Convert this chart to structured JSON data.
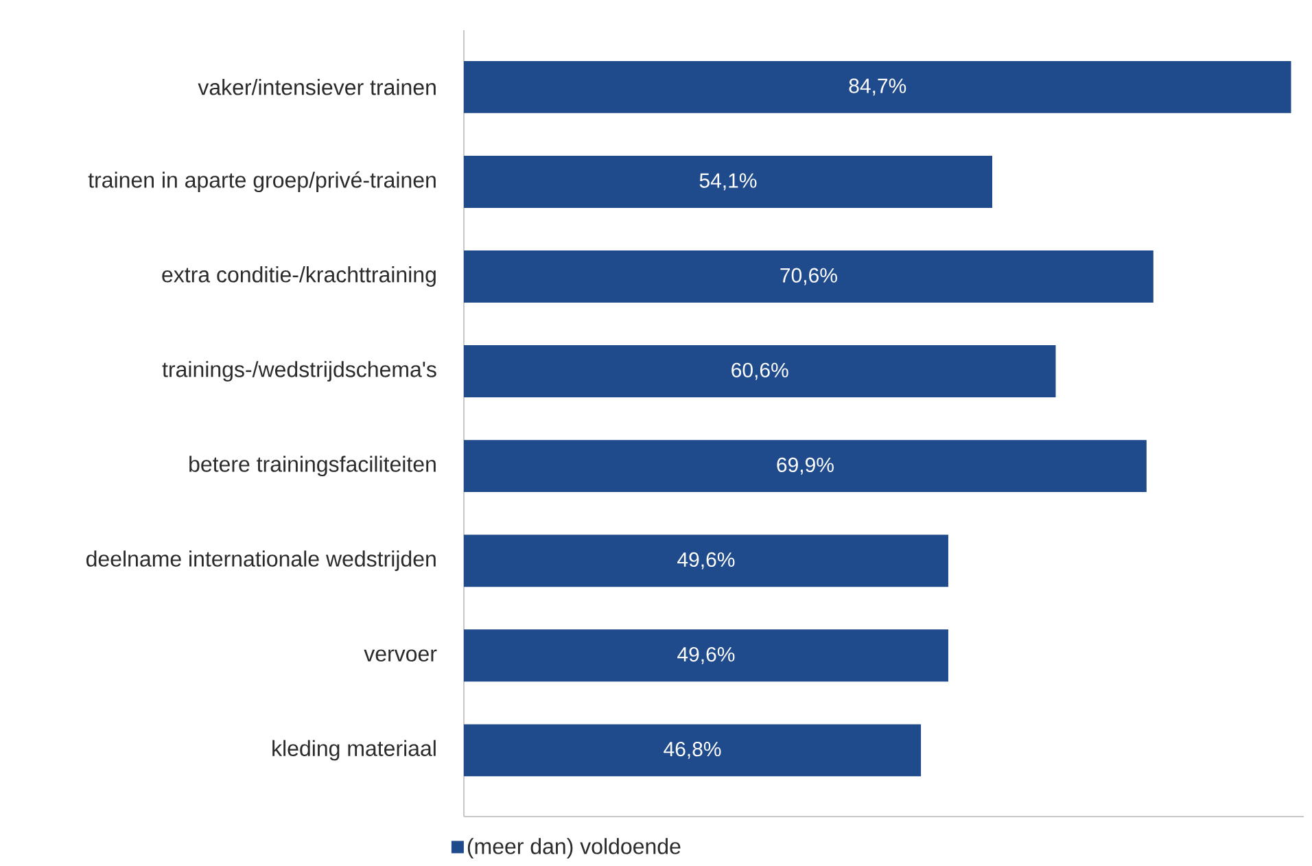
{
  "chart_data": {
    "type": "bar",
    "orientation": "horizontal",
    "categories": [
      "vaker/intensiever trainen",
      "trainen in aparte groep/privé-trainen",
      "extra conditie-/krachttraining",
      "trainings-/wedstrijdschema's",
      "betere trainingsfaciliteiten",
      "deelname internationale wedstrijden",
      "vervoer",
      "kleding materiaal"
    ],
    "series": [
      {
        "name": "(meer dan) voldoende",
        "color": "#1f4a8c",
        "values": [
          84.7,
          54.1,
          70.6,
          60.6,
          69.9,
          49.6,
          49.6,
          46.8
        ],
        "value_labels": [
          "84,7%",
          "54,1%",
          "70,6%",
          "60,6%",
          "69,9%",
          "49,6%",
          "49,6%",
          "46,8%"
        ]
      }
    ],
    "xlim": [
      0,
      86
    ],
    "tick_labels": "y",
    "legend": "bottom"
  }
}
